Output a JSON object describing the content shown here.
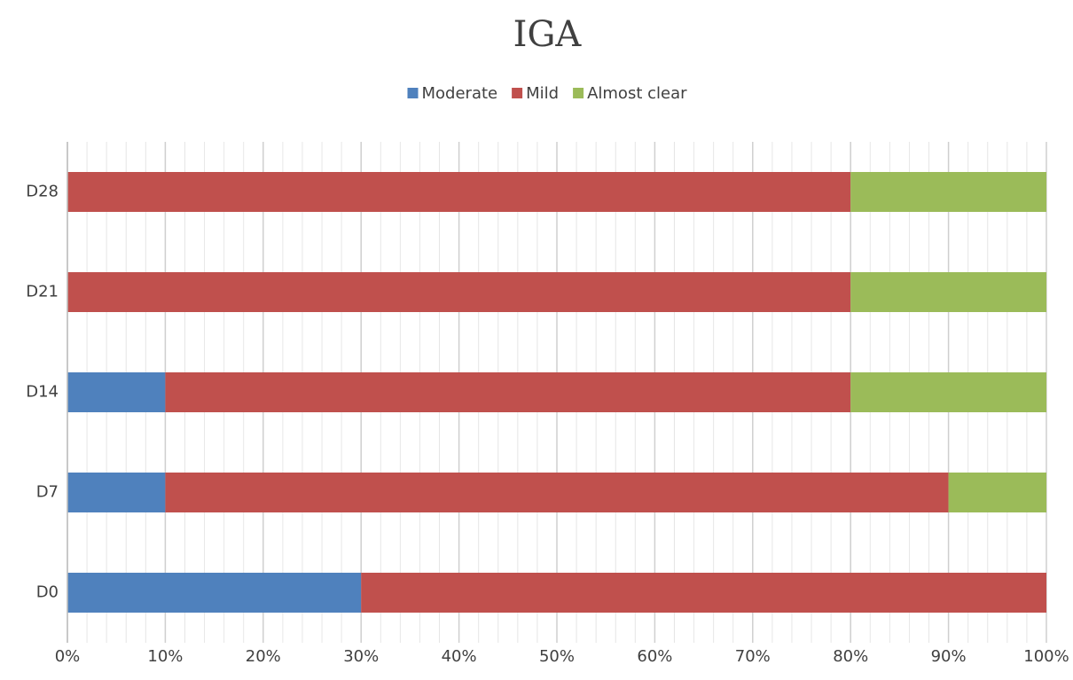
{
  "chart_data": {
    "type": "stacked_barh",
    "title": "IGA",
    "categories": [
      "D0",
      "D7",
      "D14",
      "D21",
      "D28"
    ],
    "series": [
      {
        "name": "Moderate",
        "color": "#4f81bd",
        "values": [
          30,
          10,
          10,
          0,
          0
        ]
      },
      {
        "name": "Mild",
        "color": "#c0504d",
        "values": [
          70,
          80,
          70,
          80,
          80
        ]
      },
      {
        "name": "Almost clear",
        "color": "#9bbb59",
        "values": [
          0,
          10,
          20,
          20,
          20
        ]
      }
    ],
    "xlim": [
      0,
      100
    ],
    "xticks": [
      {
        "value": 0,
        "label": "0%"
      },
      {
        "value": 10,
        "label": "10%"
      },
      {
        "value": 20,
        "label": "20%"
      },
      {
        "value": 30,
        "label": "30%"
      },
      {
        "value": 40,
        "label": "40%"
      },
      {
        "value": 50,
        "label": "50%"
      },
      {
        "value": 60,
        "label": "60%"
      },
      {
        "value": 70,
        "label": "70%"
      },
      {
        "value": 80,
        "label": "80%"
      },
      {
        "value": 90,
        "label": "90%"
      },
      {
        "value": 100,
        "label": "100%"
      }
    ],
    "xminorticks": [
      2,
      4,
      6,
      8,
      12,
      14,
      16,
      18,
      22,
      24,
      26,
      28,
      32,
      34,
      36,
      38,
      42,
      44,
      46,
      48,
      52,
      54,
      56,
      58,
      62,
      64,
      66,
      68,
      72,
      74,
      76,
      78,
      82,
      84,
      86,
      88,
      92,
      94,
      96,
      98
    ],
    "grid": true,
    "legend": "top"
  }
}
